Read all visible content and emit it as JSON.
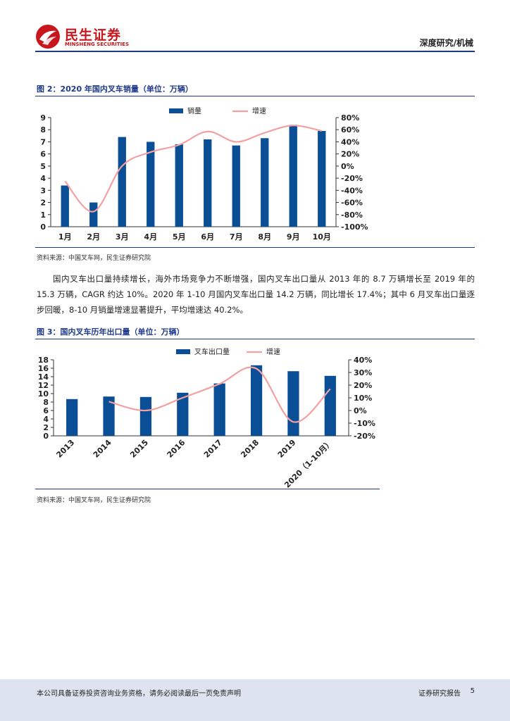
{
  "header": {
    "logo_cn": "民生证券",
    "logo_en": "MINSHENG SECURITIES",
    "section": "深度研究/机械"
  },
  "figure2": {
    "title": "图 2：2020 年国内叉车销量（单位：万辆）",
    "source": "资料来源：中国叉车网，民生证券研究院"
  },
  "paragraph": "国内叉车出口量持续增长，海外市场竞争力不断增强，国内叉车出口量从 2013 年的 8.7 万辆增长至 2019 年的 15.3 万辆，CAGR 约达 10%。2020 年 1-10 月国内叉车出口量 14.2 万辆，同比增长 17.4%；其中 6 月叉车出口量逐步回暖，8-10 月销量增速显著提升，平均增速达 40.2%。",
  "figure3": {
    "title": "图 3：国内叉车历年出口量（单位：万辆）",
    "source": "资料来源：中国叉车网，民生证券研究院"
  },
  "footer": {
    "disclaimer": "本公司具备证券投资咨询业务资格，请务必阅读最后一页免责声明",
    "report_type": "证券研究报告",
    "page": "5"
  },
  "colors": {
    "bar": "#0a4e96",
    "line": "#f4a0a0",
    "brand": "#c8161d",
    "accent": "#1f3a8a"
  },
  "chart_data": [
    {
      "type": "bar",
      "categories": [
        "1月",
        "2月",
        "3月",
        "4月",
        "5月",
        "6月",
        "7月",
        "8月",
        "9月",
        "10月"
      ],
      "series": [
        {
          "name": "销量",
          "type": "bar",
          "axis": "left",
          "values": [
            3.4,
            2.0,
            7.4,
            7.0,
            6.8,
            7.2,
            6.7,
            7.3,
            8.4,
            7.9
          ]
        },
        {
          "name": "增速",
          "type": "line",
          "axis": "right",
          "values": [
            -25,
            -75,
            0,
            23,
            35,
            57,
            40,
            55,
            67,
            58
          ]
        }
      ],
      "ylim": [
        0,
        9
      ],
      "yticks": [
        "0",
        "1",
        "2",
        "3",
        "4",
        "5",
        "6",
        "7",
        "8",
        "9"
      ],
      "y2lim": [
        -100,
        80
      ],
      "y2ticks": [
        "-100%",
        "-80%",
        "-60%",
        "-40%",
        "-20%",
        "0%",
        "20%",
        "40%",
        "60%",
        "80%"
      ],
      "legend": "top-center"
    },
    {
      "type": "bar",
      "categories": [
        "2013",
        "2014",
        "2015",
        "2016",
        "2017",
        "2018",
        "2019",
        "2020（1-10月）"
      ],
      "series": [
        {
          "name": "叉车出口量",
          "type": "bar",
          "axis": "left",
          "values": [
            8.7,
            9.3,
            9.2,
            10.2,
            12.4,
            16.7,
            15.3,
            14.2
          ]
        },
        {
          "name": "增速",
          "type": "line",
          "axis": "right",
          "values": [
            null,
            7,
            0,
            10,
            21,
            33,
            -9,
            17
          ]
        }
      ],
      "ylim": [
        0,
        18
      ],
      "yticks": [
        "0",
        "2",
        "4",
        "6",
        "8",
        "10",
        "12",
        "14",
        "16",
        "18"
      ],
      "y2lim": [
        -20,
        40
      ],
      "y2ticks": [
        "-20%",
        "-10%",
        "0%",
        "10%",
        "20%",
        "30%",
        "40%"
      ],
      "legend": "top-center"
    }
  ]
}
